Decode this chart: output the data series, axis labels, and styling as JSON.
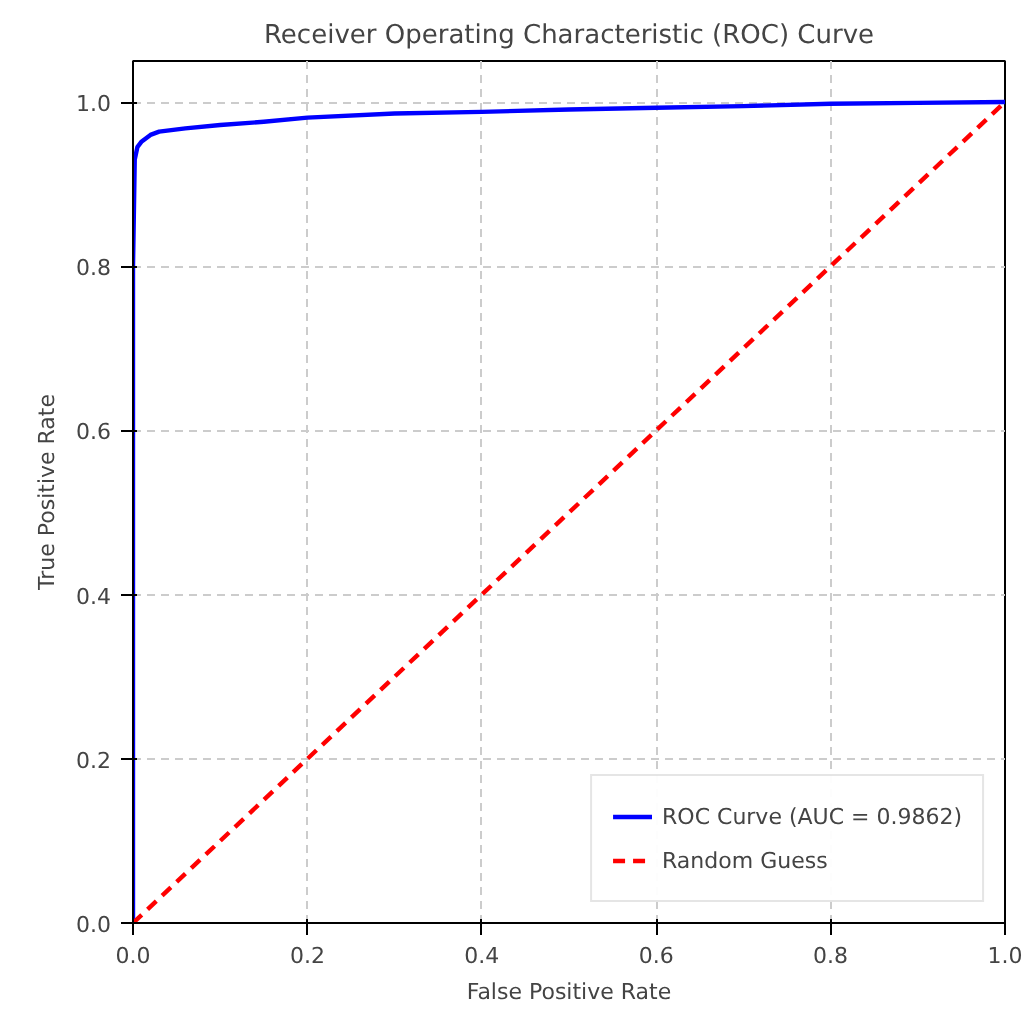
{
  "chart_data": {
    "type": "line",
    "title": "Receiver Operating Characteristic (ROC) Curve",
    "xlabel": "False Positive Rate",
    "ylabel": "True Positive Rate",
    "xlim": [
      0,
      1
    ],
    "ylim": [
      0,
      1.05
    ],
    "xticks": [
      {
        "value": 0,
        "label": "0.0"
      },
      0.2,
      0.4,
      0.6,
      0.8,
      {
        "value": 1,
        "label": "1.0"
      }
    ],
    "yticks": [
      {
        "value": 0,
        "label": "0.0"
      },
      0.2,
      0.4,
      0.6,
      0.8,
      {
        "value": 1,
        "label": "1.0"
      }
    ],
    "grid": true,
    "legend": "bottom right",
    "series": [
      {
        "name": "ROC Curve (AUC = 0.9862)",
        "color": "#0000ff",
        "line_style": "solid",
        "x": [
          0,
          0,
          0.002,
          0.005,
          0.01,
          0.02,
          0.03,
          0.06,
          0.1,
          0.15,
          0.2,
          0.3,
          0.4,
          0.5,
          0.6,
          0.7,
          0.8,
          0.9,
          1
        ],
        "values": [
          0,
          0.8,
          0.93,
          0.945,
          0.952,
          0.96,
          0.964,
          0.968,
          0.972,
          0.976,
          0.981,
          0.986,
          0.988,
          0.991,
          0.993,
          0.995,
          0.998,
          0.999,
          1
        ]
      },
      {
        "name": "Random Guess",
        "color": "#ff0000",
        "line_style": "dashed",
        "x": [
          0,
          1
        ],
        "values": [
          0,
          1
        ]
      }
    ]
  }
}
